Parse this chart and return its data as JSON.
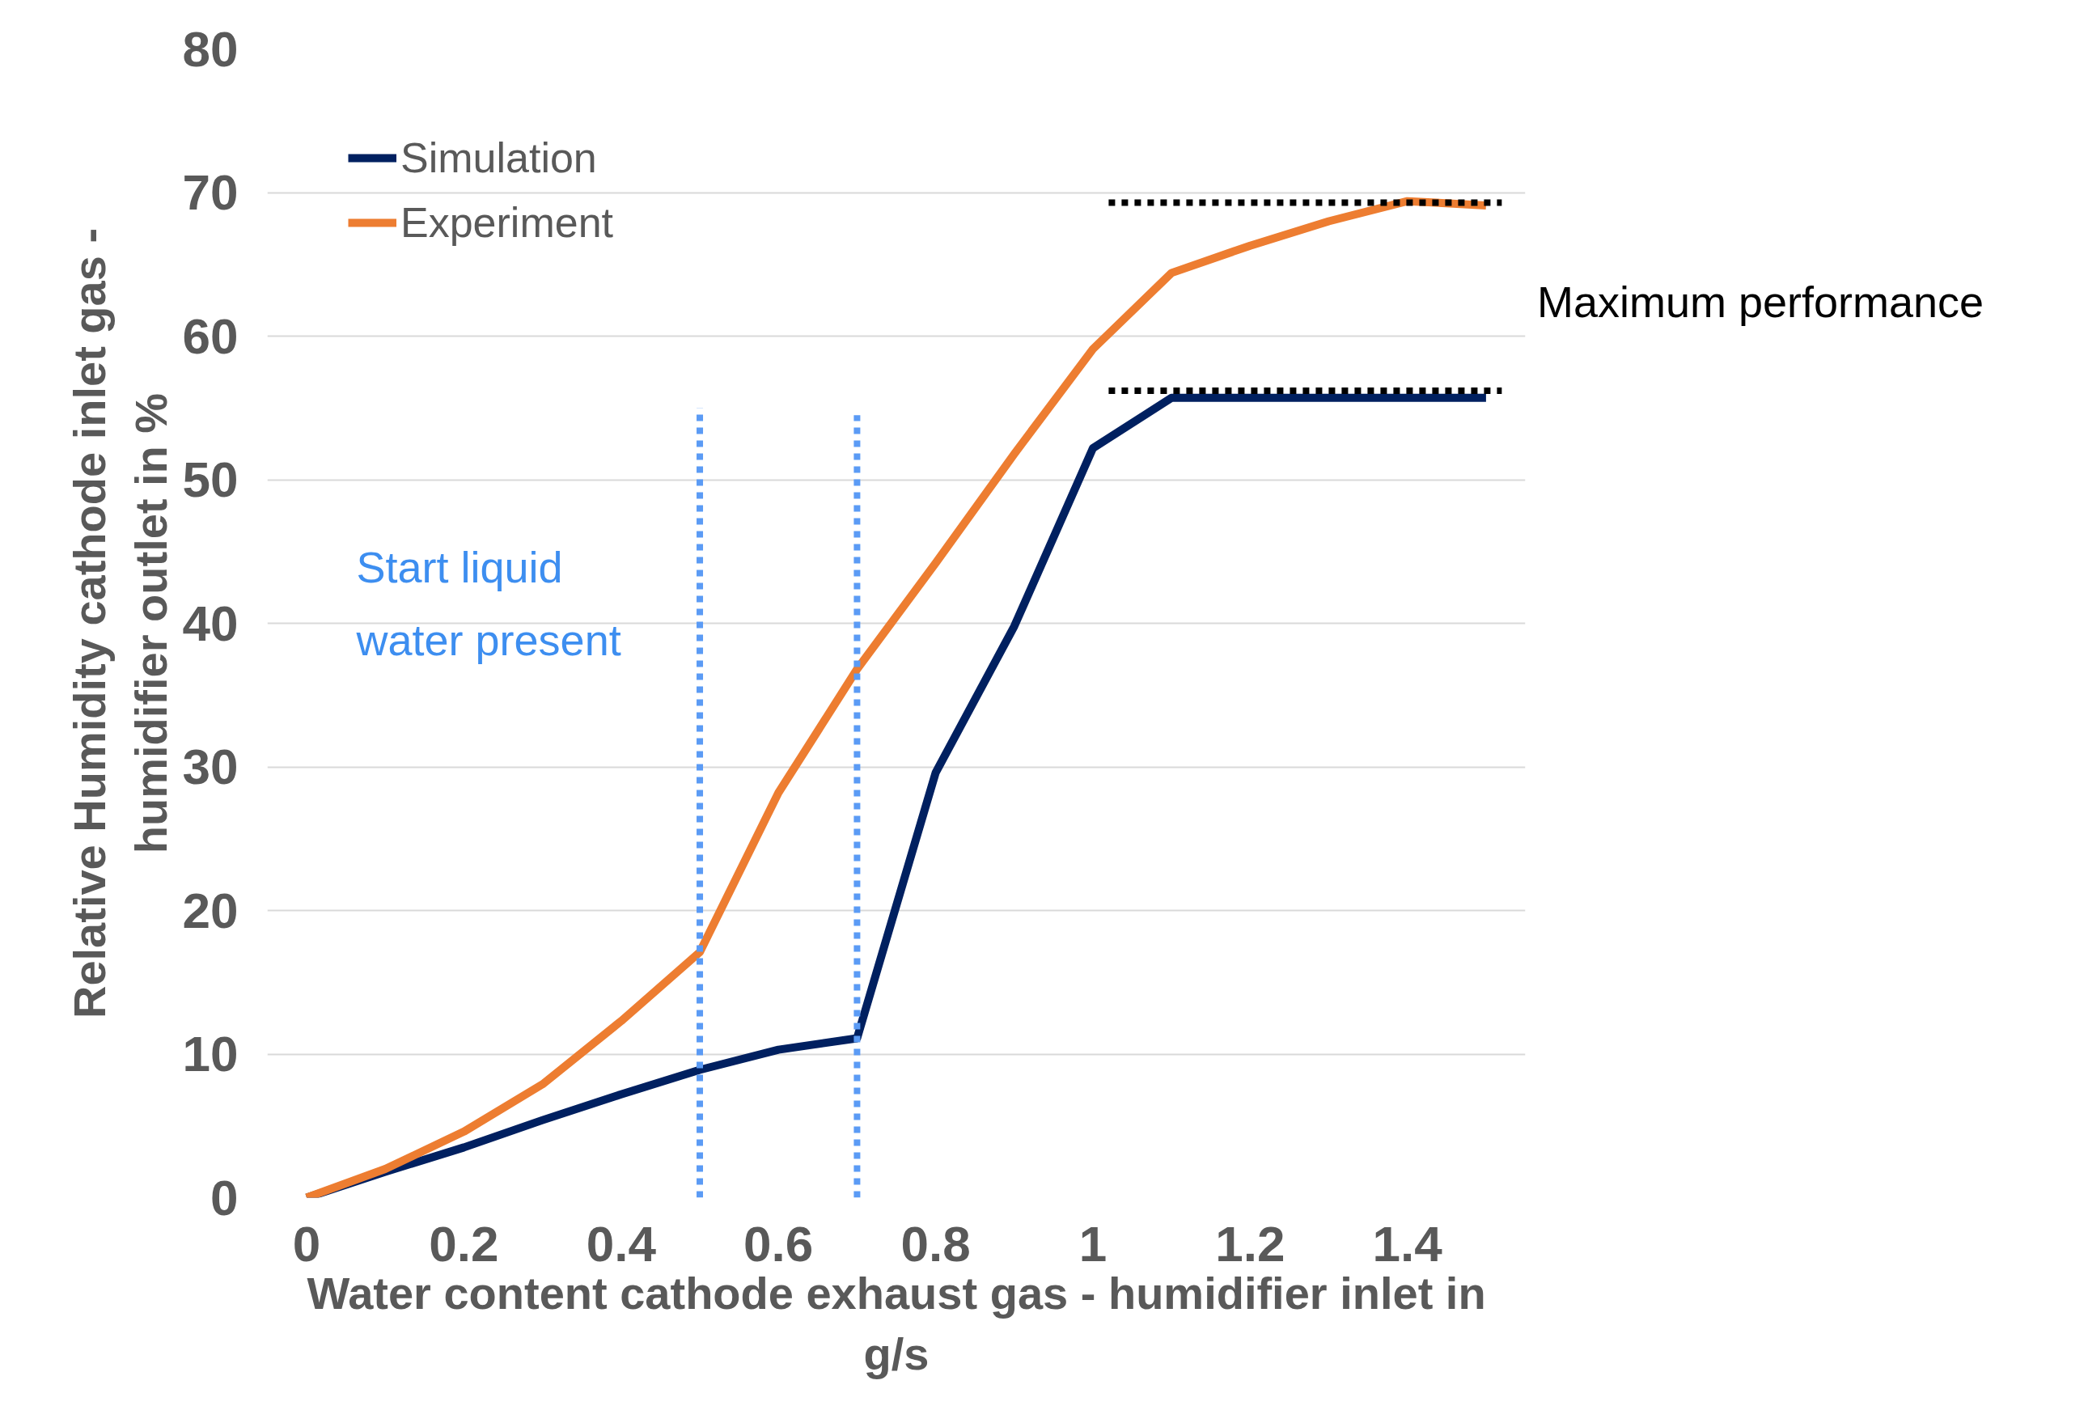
{
  "chart_data": {
    "type": "line",
    "xlabel": "Water content cathode exhaust gas - humidifier inlet in g/s",
    "ylabel": "Relative Humidity cathode inlet gas - humidifier outlet in %",
    "x": [
      0,
      0.1,
      0.2,
      0.3,
      0.4,
      0.5,
      0.6,
      0.7,
      0.8,
      0.9,
      1.0,
      1.1,
      1.2,
      1.3,
      1.4,
      1.5
    ],
    "series": [
      {
        "name": "Simulation",
        "color": "#002060",
        "values": [
          0,
          1.8,
          3.5,
          5.4,
          7.2,
          8.9,
          10.3,
          11.1,
          29.6,
          39.8,
          52.2,
          55.7,
          55.7,
          55.7,
          55.7,
          55.7
        ]
      },
      {
        "name": "Experiment",
        "color": "#ed7d31",
        "values": [
          0,
          2.0,
          4.6,
          7.9,
          12.3,
          17.1,
          28.2,
          36.8,
          44.2,
          51.8,
          59.1,
          64.4,
          66.3,
          68.0,
          69.4,
          69.1
        ]
      },
      {
        "color": "#5b9bf5",
        "x": [
          0.5,
          0.5
        ],
        "values": [
          0,
          55
        ],
        "line_style": "dotted"
      },
      {
        "color": "#5b9bf5",
        "x": [
          0.7,
          0.7
        ],
        "values": [
          0,
          54.5
        ],
        "line_style": "dotted"
      },
      {
        "color": "#000000",
        "x": [
          1.02,
          1.52
        ],
        "values": [
          69.3,
          69.3
        ],
        "line_style": "dotted"
      },
      {
        "color": "#000000",
        "x": [
          1.02,
          1.52
        ],
        "values": [
          56.2,
          56.2
        ],
        "line_style": "dotted"
      }
    ],
    "xlim": [
      -0.05,
      1.55
    ],
    "ylim": [
      0,
      80
    ],
    "xticks": [
      0,
      0.2,
      0.4,
      0.6,
      0.8,
      {
        "value": 1,
        "label": "1"
      },
      1.2,
      1.4
    ],
    "yticks": [
      0,
      10,
      20,
      30,
      40,
      50,
      60,
      70,
      80
    ],
    "grid": "y",
    "legend": "top left",
    "line_style": "solid",
    "marker": "none",
    "annotations": [
      "Maximum performance",
      "Start liquid water present"
    ]
  }
}
